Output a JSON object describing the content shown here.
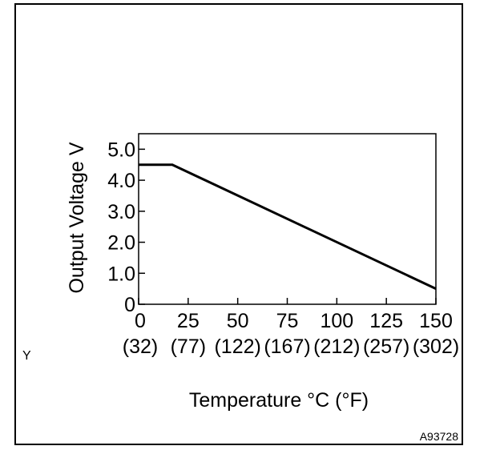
{
  "figure": {
    "side_mark": "Y",
    "ref_code": "A93728"
  },
  "chart_data": {
    "type": "line",
    "title": "",
    "xlabel": "Temperature °C (°F)",
    "ylabel": "Output Voltage V",
    "xlim": [
      0,
      150
    ],
    "ylim": [
      0,
      5.5
    ],
    "grid": false,
    "x_ticks": [
      {
        "value": 0,
        "label": "0",
        "sub": "(32)"
      },
      {
        "value": 25,
        "label": "25",
        "sub": "(77)"
      },
      {
        "value": 50,
        "label": "50",
        "sub": "(122)"
      },
      {
        "value": 75,
        "label": "75",
        "sub": "(167)"
      },
      {
        "value": 100,
        "label": "100",
        "sub": "(212)"
      },
      {
        "value": 125,
        "label": "125",
        "sub": "(257)"
      },
      {
        "value": 150,
        "label": "150",
        "sub": "(302)"
      }
    ],
    "y_ticks": [
      {
        "value": 0,
        "label": "0"
      },
      {
        "value": 1,
        "label": "1.0"
      },
      {
        "value": 2,
        "label": "2.0"
      },
      {
        "value": 3,
        "label": "3.0"
      },
      {
        "value": 4,
        "label": "4.0"
      },
      {
        "value": 5,
        "label": "5.0"
      }
    ],
    "series": [
      {
        "x": [
          0,
          17,
          150
        ],
        "y": [
          4.5,
          4.5,
          0.5
        ],
        "color": "#000000"
      }
    ]
  }
}
